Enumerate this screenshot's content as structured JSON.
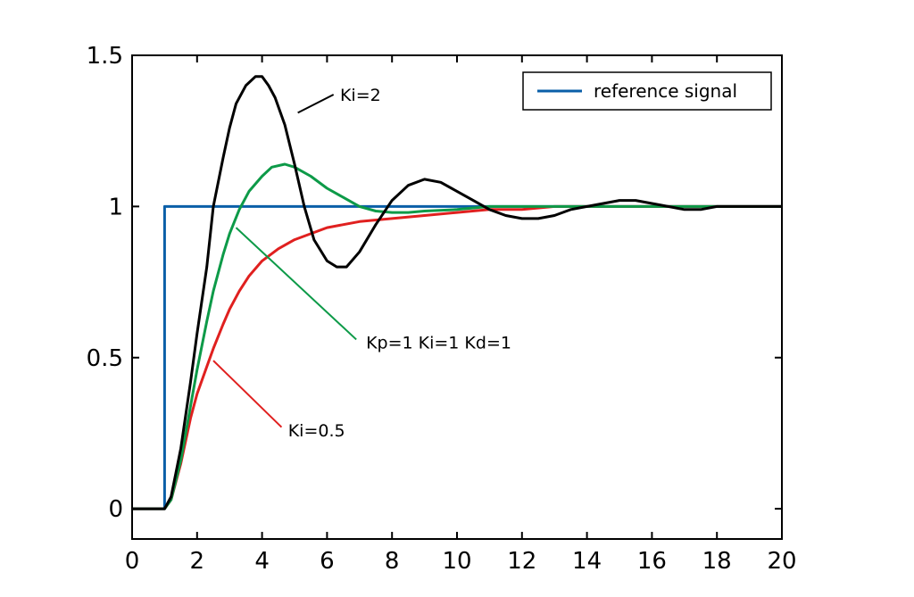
{
  "chart_data": {
    "type": "line",
    "title": "",
    "xlabel": "",
    "ylabel": "",
    "xlim": [
      0,
      20
    ],
    "ylim": [
      -0.1,
      1.5
    ],
    "xticks": [
      "0",
      "2",
      "4",
      "6",
      "8",
      "10",
      "12",
      "14",
      "16",
      "18",
      "20"
    ],
    "yticks": [
      "0",
      "0.5",
      "1",
      "1.5"
    ],
    "grid": false,
    "legend": {
      "position": "top-right",
      "entries": [
        "reference signal"
      ]
    },
    "series": [
      {
        "name": "reference signal",
        "color": "#0a5fa8",
        "x": [
          0,
          1,
          1,
          20
        ],
        "y": [
          0,
          0,
          1,
          1
        ]
      },
      {
        "name": "Ki=2",
        "color": "#000000",
        "x": [
          0,
          1,
          1.2,
          1.5,
          1.8,
          2,
          2.3,
          2.5,
          2.8,
          3,
          3.2,
          3.5,
          3.8,
          4,
          4.2,
          4.4,
          4.7,
          5,
          5.3,
          5.6,
          6,
          6.3,
          6.6,
          7,
          7.5,
          8,
          8.5,
          9,
          9.5,
          10,
          10.5,
          11,
          11.5,
          12,
          12.5,
          13,
          13.5,
          14,
          14.5,
          15,
          15.5,
          16,
          16.5,
          17,
          17.5,
          18,
          19,
          20
        ],
        "y": [
          0,
          0,
          0.04,
          0.2,
          0.42,
          0.58,
          0.8,
          1.0,
          1.16,
          1.26,
          1.34,
          1.4,
          1.43,
          1.43,
          1.4,
          1.36,
          1.27,
          1.14,
          1.0,
          0.89,
          0.82,
          0.8,
          0.8,
          0.85,
          0.94,
          1.02,
          1.07,
          1.09,
          1.08,
          1.05,
          1.02,
          0.99,
          0.97,
          0.96,
          0.96,
          0.97,
          0.99,
          1.0,
          1.01,
          1.02,
          1.02,
          1.01,
          1.0,
          0.99,
          0.99,
          1.0,
          1.0,
          1.0
        ]
      },
      {
        "name": "Kp=1 Ki=1 Kd=1",
        "color": "#0d9a48",
        "x": [
          0,
          1,
          1.2,
          1.5,
          1.8,
          2,
          2.3,
          2.5,
          2.8,
          3,
          3.3,
          3.6,
          4,
          4.3,
          4.7,
          5,
          5.5,
          6,
          6.5,
          7,
          7.5,
          8,
          8.5,
          9,
          10,
          11,
          12,
          14,
          16,
          18,
          20
        ],
        "y": [
          0,
          0,
          0.03,
          0.16,
          0.34,
          0.46,
          0.62,
          0.72,
          0.84,
          0.91,
          0.99,
          1.05,
          1.1,
          1.13,
          1.14,
          1.13,
          1.1,
          1.06,
          1.03,
          1.0,
          0.985,
          0.98,
          0.98,
          0.985,
          0.99,
          1.0,
          1.0,
          1.0,
          1.0,
          1.0,
          1.0
        ]
      },
      {
        "name": "Ki=0.5",
        "color": "#e0201f",
        "x": [
          0,
          1,
          1.2,
          1.5,
          1.8,
          2,
          2.3,
          2.5,
          2.8,
          3,
          3.3,
          3.6,
          4,
          4.5,
          5,
          5.5,
          6,
          7,
          8,
          9,
          10,
          11,
          12,
          13,
          14,
          16,
          18,
          20
        ],
        "y": [
          0,
          0,
          0.03,
          0.15,
          0.3,
          0.38,
          0.47,
          0.53,
          0.61,
          0.66,
          0.72,
          0.77,
          0.82,
          0.86,
          0.89,
          0.91,
          0.93,
          0.95,
          0.96,
          0.97,
          0.98,
          0.99,
          0.99,
          1.0,
          1.0,
          1.0,
          1.0,
          1.0
        ]
      }
    ],
    "annotations": [
      {
        "text": "Ki=2",
        "series": "Ki=2",
        "from": [
          5.1,
          1.31
        ],
        "to": [
          6.2,
          1.37
        ],
        "label_at": [
          6.4,
          1.35
        ]
      },
      {
        "text": "Kp=1 Ki=1 Kd=1",
        "series": "Kp=1 Ki=1 Kd=1",
        "from": [
          3.2,
          0.93
        ],
        "to": [
          6.9,
          0.56
        ],
        "label_at": [
          7.2,
          0.53
        ]
      },
      {
        "text": "Ki=0.5",
        "series": "Ki=0.5",
        "from": [
          2.5,
          0.49
        ],
        "to": [
          4.6,
          0.27
        ],
        "label_at": [
          4.8,
          0.24
        ]
      }
    ]
  }
}
